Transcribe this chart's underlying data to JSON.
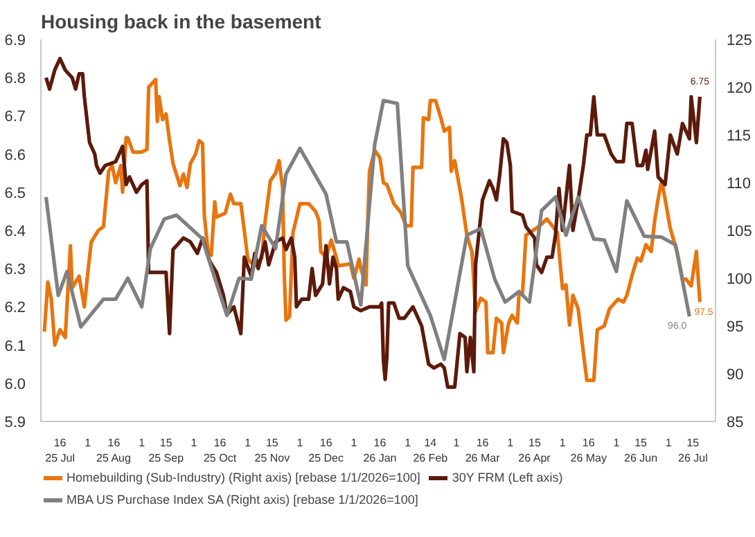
{
  "chart_data": {
    "type": "line",
    "title": "Housing back in the basement",
    "xlim": [
      "2025-07-05",
      "2026-07-28"
    ],
    "xticks": [
      {
        "value": "2025-07-16",
        "label": "16\n25 Jul"
      },
      {
        "value": "2025-08-01",
        "label": "1"
      },
      {
        "value": "2025-08-16",
        "label": "16\n25 Aug"
      },
      {
        "value": "2025-09-01",
        "label": "1"
      },
      {
        "value": "2025-09-15",
        "label": "15\n25 Sep"
      },
      {
        "value": "2025-10-01",
        "label": "1"
      },
      {
        "value": "2025-10-16",
        "label": "16\n25 Oct"
      },
      {
        "value": "2025-11-01",
        "label": "1"
      },
      {
        "value": "2025-11-15",
        "label": "15\n25 Nov"
      },
      {
        "value": "2025-12-01",
        "label": "1"
      },
      {
        "value": "2025-12-16",
        "label": "16\n25 Dec"
      },
      {
        "value": "2026-01-01",
        "label": "1"
      },
      {
        "value": "2026-01-16",
        "label": "16\n26 Jan"
      },
      {
        "value": "2026-02-01",
        "label": "1"
      },
      {
        "value": "2026-02-14",
        "label": "14\n26 Feb"
      },
      {
        "value": "2026-03-01",
        "label": "1"
      },
      {
        "value": "2026-03-16",
        "label": "16\n26 Mar"
      },
      {
        "value": "2026-04-01",
        "label": "1"
      },
      {
        "value": "2026-04-15",
        "label": "15\n26 Apr"
      },
      {
        "value": "2026-05-01",
        "label": "1"
      },
      {
        "value": "2026-05-16",
        "label": "16\n26 May"
      },
      {
        "value": "2026-06-01",
        "label": "1"
      },
      {
        "value": "2026-06-15",
        "label": "15\n26 Jun"
      },
      {
        "value": "2026-07-01",
        "label": "1"
      },
      {
        "value": "2026-07-15",
        "label": "15\n26 Jul"
      }
    ],
    "ylim": [
      5.9,
      6.9
    ],
    "yticks": [
      5.9,
      {
        "value": 6.0,
        "label": "6.0"
      },
      6.1,
      6.2,
      6.3,
      6.4,
      6.5,
      6.6,
      6.7,
      6.8,
      6.9
    ],
    "y2lim": [
      85,
      125
    ],
    "y2ticks": [
      85,
      90,
      95,
      100,
      105,
      110,
      115,
      120,
      125
    ],
    "legend": "bottom",
    "series": [
      {
        "name": "Homebuilding (Sub-Industry) (Right axis) [rebase 1/1/2026=100]",
        "color": "#e8750f",
        "axis": "y2",
        "x": [
          "2025-07-07",
          "2025-07-09",
          "2025-07-11",
          "2025-07-13",
          "2025-07-16",
          "2025-07-19",
          "2025-07-22",
          "2025-07-23",
          "2025-07-27",
          "2025-07-30",
          "2025-08-01",
          "2025-08-03",
          "2025-08-07",
          "2025-08-10",
          "2025-08-13",
          "2025-08-15",
          "2025-08-17",
          "2025-08-20",
          "2025-08-21",
          "2025-08-23",
          "2025-08-24",
          "2025-08-27",
          "2025-09-01",
          "2025-09-04",
          "2025-09-05",
          "2025-09-09",
          "2025-09-10",
          "2025-09-11",
          "2025-09-13",
          "2025-09-15",
          "2025-09-17",
          "2025-09-19",
          "2025-09-23",
          "2025-09-25",
          "2025-09-27",
          "2025-09-29",
          "2025-10-02",
          "2025-10-04",
          "2025-10-06",
          "2025-10-07",
          "2025-10-09",
          "2025-10-11",
          "2025-10-13",
          "2025-10-14",
          "2025-10-19",
          "2025-10-22",
          "2025-10-24",
          "2025-10-28",
          "2025-10-30",
          "2025-11-01",
          "2025-11-05",
          "2025-11-09",
          "2025-11-11",
          "2025-11-14",
          "2025-11-17",
          "2025-11-19",
          "2025-11-21",
          "2025-11-22",
          "2025-11-23",
          "2025-11-25",
          "2025-11-27",
          "2025-12-01",
          "2025-12-06",
          "2025-12-10",
          "2025-12-12",
          "2025-12-13",
          "2025-12-16",
          "2025-12-19",
          "2025-12-22",
          "2025-12-23",
          "2025-12-30",
          "2026-01-01",
          "2026-01-04",
          "2026-01-05",
          "2026-01-08",
          "2026-01-09",
          "2026-01-10",
          "2026-01-13",
          "2026-01-16",
          "2026-01-18",
          "2026-01-20",
          "2026-01-24",
          "2026-01-28",
          "2026-01-31",
          "2026-02-03",
          "2026-02-04",
          "2026-02-09",
          "2026-02-10",
          "2026-02-13",
          "2026-02-14",
          "2026-02-17",
          "2026-02-20",
          "2026-02-22",
          "2026-02-25",
          "2026-02-26",
          "2026-02-28",
          "2026-03-04",
          "2026-03-07",
          "2026-03-10",
          "2026-03-12",
          "2026-03-15",
          "2026-03-18",
          "2026-03-19",
          "2026-03-22",
          "2026-03-24",
          "2026-03-27",
          "2026-03-28",
          "2026-03-31",
          "2026-04-02",
          "2026-04-05",
          "2026-04-06",
          "2026-04-08",
          "2026-04-10",
          "2026-04-14",
          "2026-04-18",
          "2026-04-22",
          "2026-04-28",
          "2026-05-01",
          "2026-05-03",
          "2026-05-05",
          "2026-05-07",
          "2026-05-10",
          "2026-05-13",
          "2026-05-15",
          "2026-05-19",
          "2026-05-21",
          "2026-05-25",
          "2026-05-28",
          "2026-06-02",
          "2026-06-05",
          "2026-06-07",
          "2026-06-10",
          "2026-06-13",
          "2026-06-15",
          "2026-06-18",
          "2026-06-21",
          "2026-06-23",
          "2026-06-25",
          "2026-06-27",
          "2026-06-29",
          "2026-07-02",
          "2026-07-06",
          "2026-07-09",
          "2026-07-11",
          "2026-07-14",
          "2026-07-17",
          "2026-07-19"
        ],
        "values": [
          94.4,
          99.6,
          97.8,
          93.0,
          94.6,
          93.8,
          103.4,
          99.0,
          100.2,
          97.0,
          100.6,
          103.8,
          105.0,
          105.4,
          111.2,
          111.8,
          110.0,
          111.8,
          109.0,
          114.7,
          114.7,
          113.2,
          113.2,
          113.5,
          120.0,
          120.8,
          116.4,
          119.0,
          116.6,
          117.2,
          114.4,
          112.0,
          109.7,
          110.9,
          109.5,
          112.0,
          113.0,
          114.4,
          114.1,
          106.6,
          103.1,
          102.4,
          108.0,
          106.4,
          106.8,
          108.8,
          107.8,
          107.8,
          105.0,
          102.0,
          101.3,
          102.1,
          106.0,
          110.2,
          111.0,
          112.3,
          109.5,
          100.3,
          95.6,
          96.0,
          104.8,
          107.8,
          107.8,
          107.0,
          106.0,
          102.8,
          102.1,
          104.0,
          102.1,
          101.3,
          101.5,
          100.0,
          102.0,
          101.0,
          99.3,
          106.0,
          111.2,
          113.4,
          112.6,
          110.0,
          109.8,
          107.8,
          106.9,
          105.5,
          105.5,
          111.6,
          111.6,
          116.8,
          116.6,
          118.6,
          118.6,
          116.8,
          115.4,
          115.8,
          111.2,
          112.3,
          108.3,
          104.5,
          102.7,
          96.5,
          97.9,
          97.5,
          92.2,
          92.2,
          95.8,
          95.3,
          92.2,
          95.3,
          96.1,
          95.3,
          98.4,
          98.4,
          104.5,
          105.0,
          105.5,
          106.2,
          104.8,
          98.9,
          99.3,
          95.1,
          98.2,
          96.8,
          92.2,
          89.3,
          89.3,
          94.6,
          95.0,
          96.8,
          97.8,
          97.5,
          98.2,
          100.3,
          102.1,
          101.8,
          103.5,
          102.8,
          106.0,
          108.3,
          110.2,
          108.3,
          105.2,
          102.7,
          99.9,
          99.9,
          99.2,
          102.8,
          97.5
        ],
        "value_labels": [
          null,
          null,
          null,
          null,
          null,
          null,
          null,
          null,
          null,
          null,
          null,
          null,
          null,
          null,
          null,
          null,
          null,
          null,
          null,
          null,
          null,
          null,
          null,
          null,
          null,
          null,
          null,
          null,
          null,
          null,
          null,
          null,
          null,
          null,
          null,
          null,
          null,
          null,
          null,
          null,
          null,
          null,
          null,
          null,
          null,
          null,
          null,
          null,
          null,
          null,
          null,
          null,
          null,
          null,
          null,
          null,
          null,
          null,
          null,
          null,
          null,
          null,
          null,
          null,
          null,
          null,
          null,
          null,
          null,
          null,
          null,
          null,
          null,
          null,
          null,
          null,
          null,
          null,
          null,
          null,
          null,
          null,
          null,
          null,
          null,
          null,
          null,
          null,
          null,
          null,
          null,
          null,
          null,
          null,
          null,
          null,
          null,
          null,
          null,
          null,
          null,
          null,
          null,
          null,
          null,
          null,
          null,
          null,
          null,
          null,
          null,
          null,
          null,
          null,
          null,
          null,
          null,
          null,
          null,
          null,
          null,
          null,
          null,
          null,
          null,
          null,
          null,
          null,
          null,
          null,
          null,
          null,
          null,
          null,
          null,
          null,
          null,
          null,
          null,
          null,
          null,
          null,
          null,
          null,
          null,
          null,
          "97.5"
        ]
      },
      {
        "name": "30Y FRM (Left axis)",
        "color": "#5c1a0b",
        "x": [
          "2025-07-08",
          "2025-07-10",
          "2025-07-13",
          "2025-07-16",
          "2025-07-19",
          "2025-07-23",
          "2025-07-25",
          "2025-07-27",
          "2025-07-29",
          "2025-07-30",
          "2025-08-02",
          "2025-08-05",
          "2025-08-06",
          "2025-08-08",
          "2025-08-11",
          "2025-08-17",
          "2025-08-21",
          "2025-08-23",
          "2025-08-25",
          "2025-08-29",
          "2025-09-01",
          "2025-09-04",
          "2025-09-05",
          "2025-09-11",
          "2025-09-15",
          "2025-09-17",
          "2025-09-19",
          "2025-09-25",
          "2025-09-29",
          "2025-10-03",
          "2025-10-06",
          "2025-10-10",
          "2025-10-14",
          "2025-10-18",
          "2025-10-20",
          "2025-10-24",
          "2025-10-28",
          "2025-10-30",
          "2025-11-03",
          "2025-11-05",
          "2025-11-07",
          "2025-11-11",
          "2025-11-13",
          "2025-11-17",
          "2025-11-21",
          "2025-11-23",
          "2025-11-26",
          "2025-11-28",
          "2025-11-29",
          "2025-12-02",
          "2025-12-06",
          "2025-12-08",
          "2025-12-10",
          "2025-12-14",
          "2025-12-16",
          "2025-12-18",
          "2025-12-20",
          "2025-12-22",
          "2025-12-23",
          "2025-12-26",
          "2025-12-30",
          "2026-01-01",
          "2026-01-05",
          "2026-01-10",
          "2026-01-16",
          "2026-01-17",
          "2026-01-18",
          "2026-01-19",
          "2026-01-20",
          "2026-01-21",
          "2026-01-24",
          "2026-01-27",
          "2026-01-30",
          "2026-02-04",
          "2026-02-07",
          "2026-02-09",
          "2026-02-13",
          "2026-02-16",
          "2026-02-20",
          "2026-02-22",
          "2026-02-24",
          "2026-02-28",
          "2026-03-03",
          "2026-03-06",
          "2026-03-07",
          "2026-03-09",
          "2026-03-11",
          "2026-03-12",
          "2026-03-16",
          "2026-03-20",
          "2026-03-22",
          "2026-03-24",
          "2026-03-26",
          "2026-03-28",
          "2026-03-30",
          "2026-04-01",
          "2026-04-02",
          "2026-04-08",
          "2026-04-10",
          "2026-04-15",
          "2026-04-16",
          "2026-04-19",
          "2026-04-22",
          "2026-04-25",
          "2026-04-27",
          "2026-04-29",
          "2026-05-01",
          "2026-05-05",
          "2026-05-07",
          "2026-05-10",
          "2026-05-13",
          "2026-05-15",
          "2026-05-17",
          "2026-05-19",
          "2026-05-21",
          "2026-05-25",
          "2026-05-29",
          "2026-06-01",
          "2026-06-05",
          "2026-06-07",
          "2026-06-10",
          "2026-06-13",
          "2026-06-16",
          "2026-06-18",
          "2026-06-19",
          "2026-06-23",
          "2026-06-25",
          "2026-06-29",
          "2026-07-02",
          "2026-07-06",
          "2026-07-09",
          "2026-07-13",
          "2026-07-14",
          "2026-07-17",
          "2026-07-19"
        ],
        "values": [
          6.8,
          6.77,
          6.82,
          6.85,
          6.82,
          6.8,
          6.77,
          6.81,
          6.81,
          6.75,
          6.63,
          6.6,
          6.57,
          6.55,
          6.57,
          6.58,
          6.62,
          6.52,
          6.54,
          6.5,
          6.52,
          6.53,
          6.29,
          6.29,
          6.29,
          6.13,
          6.35,
          6.38,
          6.37,
          6.34,
          6.38,
          6.32,
          6.29,
          6.23,
          6.18,
          6.2,
          6.13,
          6.33,
          6.28,
          6.34,
          6.3,
          6.37,
          6.31,
          6.37,
          6.38,
          6.35,
          6.38,
          6.33,
          6.2,
          6.22,
          6.22,
          6.3,
          6.23,
          6.26,
          6.36,
          6.26,
          6.33,
          6.3,
          6.22,
          6.25,
          6.24,
          6.2,
          6.19,
          6.2,
          6.2,
          6.21,
          6.06,
          6.01,
          6.07,
          6.21,
          6.21,
          6.17,
          6.17,
          6.2,
          6.17,
          6.15,
          6.05,
          6.04,
          6.05,
          6.04,
          5.99,
          5.99,
          6.13,
          6.12,
          6.03,
          6.12,
          6.03,
          6.31,
          6.48,
          6.53,
          6.51,
          6.48,
          6.55,
          6.64,
          6.63,
          6.57,
          6.45,
          6.44,
          6.41,
          6.38,
          6.31,
          6.29,
          6.33,
          6.33,
          6.39,
          6.51,
          6.4,
          6.57,
          6.4,
          6.48,
          6.57,
          6.65,
          6.65,
          6.75,
          6.65,
          6.65,
          6.6,
          6.58,
          6.58,
          6.68,
          6.68,
          6.57,
          6.57,
          6.61,
          6.56,
          6.66,
          6.54,
          6.52,
          6.65,
          6.6,
          6.68,
          6.64,
          6.75,
          6.63,
          6.75
        ],
        "value_labels": [
          null,
          null,
          null,
          null,
          null,
          null,
          null,
          null,
          null,
          null,
          null,
          null,
          null,
          null,
          null,
          null,
          null,
          null,
          null,
          null,
          null,
          null,
          null,
          null,
          null,
          null,
          null,
          null,
          null,
          null,
          null,
          null,
          null,
          null,
          null,
          null,
          null,
          null,
          null,
          null,
          null,
          null,
          null,
          null,
          null,
          null,
          null,
          null,
          null,
          null,
          null,
          null,
          null,
          null,
          null,
          null,
          null,
          null,
          null,
          null,
          null,
          null,
          null,
          null,
          null,
          null,
          null,
          null,
          null,
          null,
          null,
          null,
          null,
          null,
          null,
          null,
          null,
          null,
          null,
          null,
          null,
          null,
          null,
          null,
          null,
          null,
          null,
          null,
          null,
          null,
          null,
          null,
          null,
          null,
          null,
          null,
          null,
          null,
          null,
          null,
          null,
          null,
          null,
          null,
          null,
          null,
          null,
          null,
          null,
          null,
          null,
          null,
          null,
          null,
          null,
          null,
          null,
          null,
          null,
          null,
          null,
          null,
          null,
          null,
          null,
          null,
          null,
          null,
          null,
          null,
          null,
          null,
          null,
          null,
          "6.75"
        ]
      },
      {
        "name": "MBA US Purchase Index SA (Right axis) [rebase 1/1/2026=100]",
        "color": "#808080",
        "axis": "y2",
        "x": [
          "2025-07-08",
          "2025-07-15",
          "2025-07-20",
          "2025-07-28",
          "2025-08-10",
          "2025-08-17",
          "2025-08-24",
          "2025-09-01",
          "2025-09-06",
          "2025-09-14",
          "2025-09-21",
          "2025-10-06",
          "2025-10-10",
          "2025-10-20",
          "2025-10-27",
          "2025-11-03",
          "2025-11-09",
          "2025-11-17",
          "2025-11-23",
          "2025-12-01",
          "2025-12-16",
          "2025-12-22",
          "2025-12-28",
          "2026-01-05",
          "2026-01-13",
          "2026-01-18",
          "2026-01-26",
          "2026-02-01",
          "2026-02-14",
          "2026-02-22",
          "2026-03-07",
          "2026-03-15",
          "2026-03-23",
          "2026-03-29",
          "2026-04-06",
          "2026-04-12",
          "2026-04-19",
          "2026-04-27",
          "2026-05-03",
          "2026-05-10",
          "2026-05-19",
          "2026-05-25",
          "2026-06-01",
          "2026-06-07",
          "2026-06-17",
          "2026-06-27",
          "2026-07-05",
          "2026-07-13"
        ],
        "values": [
          108.5,
          98.2,
          100.7,
          94.9,
          97.8,
          97.8,
          100.0,
          97.0,
          103.1,
          106.2,
          106.6,
          104.1,
          101.7,
          96.1,
          100.0,
          99.9,
          105.5,
          103.1,
          110.9,
          113.6,
          108.8,
          103.8,
          103.8,
          97.2,
          114.0,
          118.6,
          118.3,
          101.3,
          96.1,
          91.5,
          104.5,
          105.2,
          99.9,
          97.5,
          98.6,
          97.5,
          107.1,
          108.5,
          104.5,
          108.5,
          104.1,
          104.0,
          100.7,
          108.1,
          104.4,
          104.3,
          103.5,
          96.0
        ],
        "value_labels": [
          null,
          null,
          null,
          null,
          null,
          null,
          null,
          null,
          null,
          null,
          null,
          null,
          null,
          null,
          null,
          null,
          null,
          null,
          null,
          null,
          null,
          null,
          null,
          null,
          null,
          null,
          null,
          null,
          null,
          null,
          null,
          null,
          null,
          null,
          null,
          null,
          null,
          null,
          null,
          null,
          null,
          null,
          null,
          null,
          null,
          null,
          null,
          "96.0"
        ]
      }
    ]
  }
}
